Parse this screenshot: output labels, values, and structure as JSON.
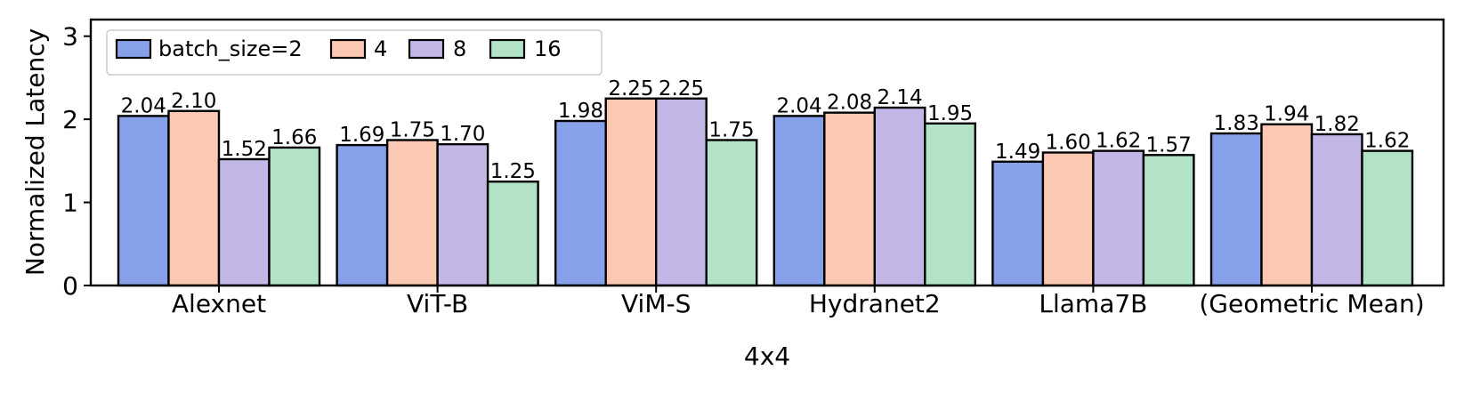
{
  "chart_data": {
    "type": "bar",
    "title": "",
    "xlabel": "4x4",
    "ylabel": "Normalized Latency",
    "ylim": [
      0,
      3.2
    ],
    "yticks": [
      "0",
      "1",
      "2",
      "3"
    ],
    "categories": [
      "Alexnet",
      "ViT-B",
      "ViM-S",
      "Hydranet2",
      "Llama7B",
      "(Geometric Mean)"
    ],
    "series": [
      {
        "name": "batch_size=2",
        "color": "#87A0EA",
        "values": [
          2.04,
          1.69,
          1.98,
          2.04,
          1.49,
          1.83
        ],
        "labels": [
          "2.04",
          "1.69",
          "1.98",
          "2.04",
          "1.49",
          "1.83"
        ]
      },
      {
        "name": "4",
        "color": "#FBC8B4",
        "values": [
          2.1,
          1.75,
          2.25,
          2.08,
          1.6,
          1.94
        ],
        "labels": [
          "2.10",
          "1.75",
          "2.25",
          "2.08",
          "1.60",
          "1.94"
        ]
      },
      {
        "name": "8",
        "color": "#C3B7E8",
        "values": [
          1.52,
          1.7,
          2.25,
          2.14,
          1.62,
          1.82
        ],
        "labels": [
          "1.52",
          "1.70",
          "2.25",
          "2.14",
          "1.62",
          "1.82"
        ]
      },
      {
        "name": "16",
        "color": "#B2E3C6",
        "values": [
          1.66,
          1.25,
          1.75,
          1.95,
          1.57,
          1.62
        ],
        "labels": [
          "1.66",
          "1.25",
          "1.75",
          "1.95",
          "1.57",
          "1.62"
        ]
      }
    ],
    "legend": {
      "position": "top-left",
      "columns": 4
    },
    "grid": false
  }
}
